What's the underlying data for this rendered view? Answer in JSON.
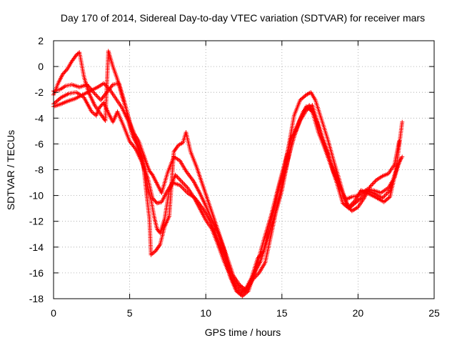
{
  "chart_data": {
    "type": "scatter",
    "title": "Day 170 of 2014, Sidereal Day-to-day VTEC variation (SDTVAR) for receiver mars",
    "xlabel": "GPS time / hours",
    "ylabel": "SDTVAR / TECUs",
    "xlim": [
      0,
      25
    ],
    "ylim": [
      -18,
      2
    ],
    "xticks": [
      0,
      5,
      10,
      15,
      20,
      25
    ],
    "yticks": [
      2,
      0,
      -2,
      -4,
      -6,
      -8,
      -10,
      -12,
      -14,
      -16,
      -18
    ],
    "grid": true,
    "marker": "plus",
    "series_color": "#ff0000",
    "series": [
      {
        "values": [
          [
            0.0,
            -2.9
          ],
          [
            0.5,
            -2.4
          ],
          [
            1.0,
            -2.1
          ],
          [
            1.5,
            -2.0
          ],
          [
            2.0,
            -2.4
          ],
          [
            2.5,
            -3.5
          ],
          [
            2.8,
            -3.8
          ],
          [
            3.0,
            -3.2
          ],
          [
            3.3,
            -2.8
          ],
          [
            3.6,
            -3.6
          ],
          [
            3.9,
            -4.3
          ],
          [
            4.2,
            -3.5
          ],
          [
            4.6,
            -4.6
          ],
          [
            5.0,
            -5.8
          ],
          [
            5.4,
            -6.4
          ],
          [
            5.8,
            -7.4
          ],
          [
            6.0,
            -8.0
          ],
          [
            6.2,
            -8.7
          ],
          [
            6.5,
            -10.2
          ],
          [
            6.8,
            -10.6
          ],
          [
            7.1,
            -10.5
          ],
          [
            7.4,
            -9.8
          ],
          [
            7.8,
            -9.0
          ],
          [
            8.3,
            -9.2
          ],
          [
            8.8,
            -9.8
          ],
          [
            9.3,
            -10.2
          ],
          [
            9.8,
            -11.0
          ],
          [
            10.3,
            -12.0
          ],
          [
            10.7,
            -13.2
          ],
          [
            11.2,
            -14.6
          ],
          [
            11.6,
            -16.3
          ],
          [
            12.0,
            -17.4
          ],
          [
            12.4,
            -17.8
          ],
          [
            12.8,
            -17.4
          ],
          [
            13.3,
            -15.6
          ],
          [
            13.8,
            -13.5
          ],
          [
            14.3,
            -11.5
          ],
          [
            14.8,
            -9.2
          ],
          [
            15.2,
            -7.4
          ],
          [
            15.6,
            -5.6
          ],
          [
            16.0,
            -4.6
          ],
          [
            16.3,
            -3.8
          ],
          [
            16.6,
            -3.1
          ],
          [
            17.0,
            -3.5
          ],
          [
            17.4,
            -5.1
          ],
          [
            17.8,
            -6.3
          ],
          [
            18.2,
            -7.6
          ],
          [
            18.6,
            -9.0
          ],
          [
            19.0,
            -10.6
          ],
          [
            19.4,
            -11.0
          ],
          [
            19.8,
            -10.6
          ],
          [
            20.2,
            -10.2
          ],
          [
            20.6,
            -9.5
          ],
          [
            21.0,
            -9.6
          ],
          [
            21.5,
            -9.8
          ],
          [
            22.0,
            -9.4
          ],
          [
            22.4,
            -8.6
          ],
          [
            22.7,
            -7.4
          ],
          [
            22.9,
            -7.0
          ]
        ]
      },
      {
        "values": [
          [
            0.0,
            -1.9
          ],
          [
            0.4,
            -1.8
          ],
          [
            0.8,
            -1.5
          ],
          [
            1.2,
            -1.4
          ],
          [
            1.7,
            -1.6
          ],
          [
            2.2,
            -1.4
          ],
          [
            2.7,
            -2.1
          ],
          [
            3.1,
            -2.6
          ],
          [
            3.5,
            -2.0
          ],
          [
            3.9,
            -1.4
          ],
          [
            4.3,
            -1.3
          ],
          [
            4.6,
            -2.5
          ],
          [
            5.0,
            -4.3
          ],
          [
            5.3,
            -5.2
          ],
          [
            5.6,
            -5.8
          ],
          [
            5.9,
            -6.8
          ],
          [
            6.1,
            -7.5
          ],
          [
            6.3,
            -8.1
          ],
          [
            6.5,
            -8.4
          ],
          [
            6.8,
            -9.1
          ],
          [
            7.1,
            -9.8
          ],
          [
            7.5,
            -8.2
          ],
          [
            7.9,
            -7.0
          ],
          [
            8.3,
            -7.3
          ],
          [
            8.7,
            -8.1
          ],
          [
            9.2,
            -8.9
          ],
          [
            9.6,
            -9.8
          ],
          [
            10.0,
            -10.8
          ],
          [
            10.4,
            -11.9
          ],
          [
            10.8,
            -12.9
          ],
          [
            11.2,
            -14.2
          ],
          [
            11.6,
            -15.9
          ],
          [
            12.0,
            -16.8
          ],
          [
            12.4,
            -17.4
          ],
          [
            12.8,
            -17.1
          ],
          [
            13.2,
            -16.0
          ],
          [
            13.6,
            -15.1
          ],
          [
            14.0,
            -13.6
          ],
          [
            14.4,
            -12.0
          ],
          [
            14.8,
            -10.2
          ],
          [
            15.2,
            -8.2
          ],
          [
            15.6,
            -6.2
          ],
          [
            16.0,
            -4.7
          ],
          [
            16.4,
            -3.5
          ],
          [
            16.8,
            -3.0
          ],
          [
            17.2,
            -3.9
          ],
          [
            17.6,
            -5.3
          ],
          [
            18.0,
            -6.7
          ],
          [
            18.4,
            -8.2
          ],
          [
            18.8,
            -9.3
          ],
          [
            19.2,
            -10.3
          ],
          [
            19.6,
            -10.1
          ],
          [
            20.0,
            -10.0
          ],
          [
            20.5,
            -9.6
          ],
          [
            21.0,
            -9.8
          ],
          [
            21.6,
            -10.2
          ],
          [
            22.1,
            -9.6
          ],
          [
            22.5,
            -8.0
          ],
          [
            22.8,
            -7.2
          ]
        ]
      },
      {
        "values": [
          [
            0.0,
            -3.1
          ],
          [
            0.5,
            -2.9
          ],
          [
            0.9,
            -2.7
          ],
          [
            1.4,
            -2.5
          ],
          [
            1.9,
            -2.2
          ],
          [
            2.4,
            -1.9
          ],
          [
            2.9,
            -1.6
          ],
          [
            3.3,
            -1.3
          ],
          [
            3.7,
            -1.8
          ],
          [
            4.1,
            -2.5
          ],
          [
            4.5,
            -3.2
          ],
          [
            4.9,
            -4.2
          ],
          [
            5.2,
            -5.4
          ],
          [
            5.5,
            -6.1
          ],
          [
            5.8,
            -7.2
          ],
          [
            6.0,
            -8.3
          ],
          [
            6.2,
            -9.4
          ],
          [
            6.4,
            -10.3
          ],
          [
            6.6,
            -11.6
          ],
          [
            6.8,
            -12.6
          ],
          [
            7.0,
            -12.9
          ],
          [
            7.3,
            -11.8
          ],
          [
            7.6,
            -9.6
          ],
          [
            8.0,
            -8.4
          ],
          [
            8.4,
            -8.9
          ],
          [
            8.8,
            -9.4
          ],
          [
            9.2,
            -10.1
          ],
          [
            9.6,
            -11.0
          ],
          [
            10.0,
            -11.9
          ],
          [
            10.4,
            -12.6
          ],
          [
            10.8,
            -13.8
          ],
          [
            11.2,
            -15.1
          ],
          [
            11.6,
            -16.2
          ],
          [
            12.0,
            -17.2
          ],
          [
            12.3,
            -17.6
          ],
          [
            12.7,
            -17.3
          ],
          [
            13.1,
            -16.5
          ],
          [
            13.5,
            -16.0
          ],
          [
            13.9,
            -15.2
          ],
          [
            14.3,
            -13.0
          ],
          [
            14.6,
            -11.3
          ],
          [
            15.0,
            -9.6
          ],
          [
            15.4,
            -7.2
          ],
          [
            15.8,
            -5.4
          ],
          [
            16.2,
            -4.2
          ],
          [
            16.6,
            -3.4
          ],
          [
            17.0,
            -3.0
          ],
          [
            17.4,
            -4.6
          ],
          [
            17.8,
            -6.1
          ],
          [
            18.2,
            -7.4
          ],
          [
            18.6,
            -8.6
          ],
          [
            19.0,
            -9.9
          ],
          [
            19.4,
            -10.9
          ],
          [
            19.8,
            -10.4
          ],
          [
            20.2,
            -9.6
          ],
          [
            20.6,
            -9.8
          ],
          [
            21.1,
            -10.1
          ],
          [
            21.7,
            -10.5
          ],
          [
            22.1,
            -10.1
          ],
          [
            22.5,
            -8.0
          ],
          [
            22.9,
            -4.3
          ]
        ]
      },
      {
        "values": [
          [
            0.0,
            -2.2
          ],
          [
            0.3,
            -1.3
          ],
          [
            0.6,
            -0.6
          ],
          [
            0.9,
            -0.2
          ],
          [
            1.2,
            0.4
          ],
          [
            1.5,
            0.9
          ],
          [
            1.7,
            1.1
          ],
          [
            2.0,
            -0.8
          ],
          [
            2.3,
            -2.0
          ],
          [
            2.7,
            -3.0
          ],
          [
            3.1,
            -3.7
          ],
          [
            3.4,
            -4.2
          ],
          [
            3.6,
            1.2
          ],
          [
            3.9,
            0.0
          ],
          [
            4.2,
            -1.0
          ],
          [
            4.5,
            -2.3
          ],
          [
            4.8,
            -3.4
          ],
          [
            5.1,
            -4.8
          ],
          [
            5.4,
            -5.6
          ],
          [
            5.7,
            -6.6
          ],
          [
            5.9,
            -7.6
          ],
          [
            6.1,
            -9.8
          ],
          [
            6.3,
            -11.8
          ],
          [
            6.4,
            -14.6
          ],
          [
            6.7,
            -14.3
          ],
          [
            7.0,
            -13.8
          ],
          [
            7.3,
            -12.4
          ],
          [
            7.6,
            -11.6
          ],
          [
            7.9,
            -6.6
          ],
          [
            8.2,
            -6.1
          ],
          [
            8.5,
            -5.9
          ],
          [
            8.7,
            -5.1
          ],
          [
            9.0,
            -6.6
          ],
          [
            9.4,
            -7.8
          ],
          [
            9.8,
            -9.2
          ],
          [
            10.2,
            -10.6
          ],
          [
            10.6,
            -12.0
          ],
          [
            11.0,
            -13.4
          ],
          [
            11.4,
            -14.8
          ],
          [
            11.8,
            -16.2
          ],
          [
            12.2,
            -16.9
          ],
          [
            12.6,
            -17.3
          ],
          [
            13.0,
            -16.4
          ],
          [
            13.4,
            -14.9
          ],
          [
            13.8,
            -14.3
          ],
          [
            14.2,
            -12.3
          ],
          [
            14.5,
            -11.0
          ],
          [
            14.8,
            -9.4
          ],
          [
            15.2,
            -7.7
          ],
          [
            15.5,
            -5.8
          ],
          [
            15.8,
            -3.8
          ],
          [
            16.2,
            -2.6
          ],
          [
            16.6,
            -2.2
          ],
          [
            16.9,
            -2.0
          ],
          [
            17.2,
            -2.6
          ],
          [
            17.6,
            -4.1
          ],
          [
            18.0,
            -5.6
          ],
          [
            18.4,
            -7.3
          ],
          [
            18.8,
            -8.9
          ],
          [
            19.2,
            -10.6
          ],
          [
            19.6,
            -11.2
          ],
          [
            20.0,
            -10.9
          ],
          [
            20.4,
            -10.2
          ],
          [
            20.8,
            -9.3
          ],
          [
            21.2,
            -8.8
          ],
          [
            21.6,
            -8.5
          ],
          [
            22.0,
            -8.3
          ],
          [
            22.4,
            -7.6
          ],
          [
            22.7,
            -5.8
          ]
        ]
      }
    ]
  }
}
